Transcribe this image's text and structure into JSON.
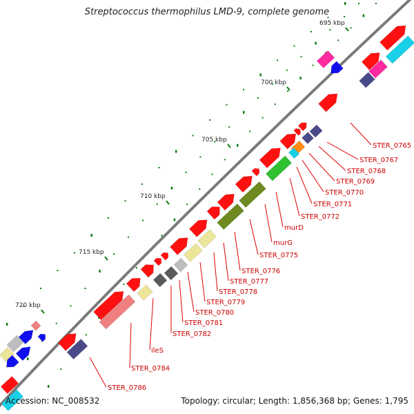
{
  "title": "Streptococcus thermophilus LMD-9, complete genome",
  "footer": {
    "accession": "Accession: NC_008532",
    "summary": "Topology: circular; Length: 1,856,368 bp; Genes: 1,795"
  },
  "scale_labels": [
    "695 kbp",
    "700 kbp",
    "705 kbp",
    "710 kbp",
    "715 kbp",
    "720 kbp"
  ],
  "gene_labels": [
    "STER_0765",
    "STER_0767",
    "STER_0768",
    "STER_0769",
    "STER_0770",
    "STER_0771",
    "STER_0772",
    "murD",
    "murG",
    "STER_0775",
    "STER_0776",
    "STER_0777",
    "STER_0778",
    "STER_0779",
    "STER_0780",
    "STER_0781",
    "STER_0782",
    "ileS",
    "STER_0784",
    "STER_0786"
  ],
  "colors": {
    "backbone": "#7a7a7a",
    "gene_red": "#ff1010",
    "gene_pink": "#f08080",
    "gene_blue": "#1010ee",
    "gene_navy": "#4a4a8a",
    "gene_cyan": "#18d0e8",
    "gene_magenta": "#ff2aa0",
    "gene_green": "#30c030",
    "gene_olive": "#6e8a20",
    "gene_khaki": "#ece69a",
    "gene_gray": "#bdbdbd",
    "gene_darkgray": "#5a5a5a",
    "gene_orange": "#ff8c10",
    "tick": "#0a7a0a",
    "label": "#cc0000"
  }
}
